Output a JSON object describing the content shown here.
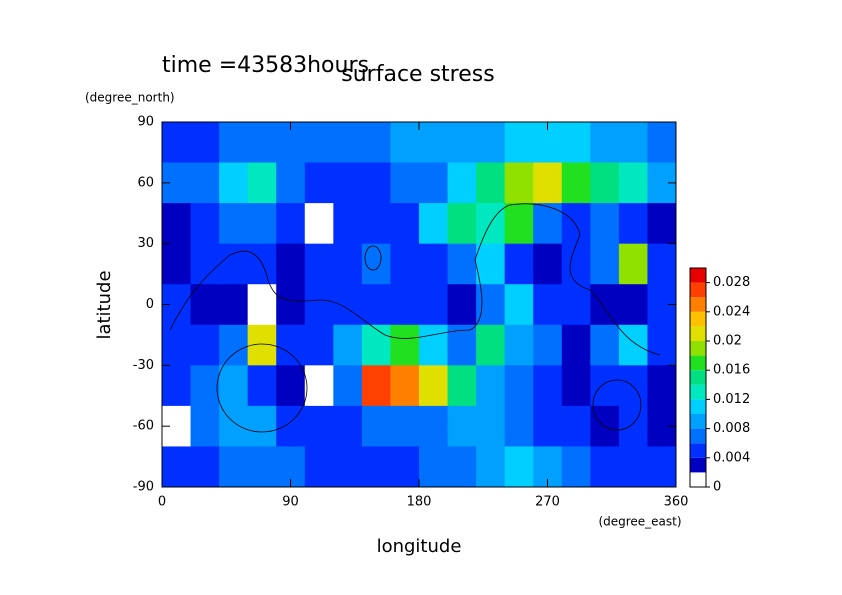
{
  "chart_data": {
    "type": "contour",
    "title": "surface stress",
    "annotation": "time =43583hours",
    "x_label": "longitude",
    "x_unit": "(degree_east)",
    "y_label": "latitude",
    "y_unit": "(degree_north)",
    "xlim": [
      0,
      360
    ],
    "xticks": [
      0,
      90,
      180,
      270,
      360
    ],
    "ylim": [
      -90,
      90
    ],
    "yticks": [
      -90,
      -60,
      -30,
      0,
      30,
      60,
      90
    ],
    "x": [
      10,
      30,
      50,
      70,
      90,
      110,
      130,
      150,
      170,
      190,
      210,
      230,
      250,
      270,
      290,
      310,
      330,
      350
    ],
    "y": [
      80,
      60,
      40,
      20,
      0,
      -20,
      -40,
      -60,
      -80
    ],
    "z": [
      [
        0.005,
        0.005,
        0.006,
        0.006,
        0.006,
        0.007,
        0.006,
        0.007,
        0.008,
        0.008,
        0.008,
        0.009,
        0.01,
        0.01,
        0.01,
        0.009,
        0.008,
        0.007
      ],
      [
        0.006,
        0.007,
        0.01,
        0.012,
        0.006,
        0.005,
        0.004,
        0.005,
        0.006,
        0.006,
        0.01,
        0.014,
        0.018,
        0.02,
        0.016,
        0.014,
        0.012,
        0.008
      ],
      [
        0.003,
        0.004,
        0.006,
        0.006,
        0.004,
        0.001,
        0.004,
        0.005,
        0.004,
        0.01,
        0.014,
        0.012,
        0.016,
        0.006,
        0.004,
        0.006,
        0.005,
        0.003
      ],
      [
        0.002,
        0.004,
        0.004,
        0.004,
        0.002,
        0.004,
        0.004,
        0.006,
        0.005,
        0.005,
        0.006,
        0.01,
        0.004,
        0.003,
        0.004,
        0.006,
        0.018,
        0.004
      ],
      [
        0.004,
        0.002,
        0.003,
        0.001,
        0.002,
        0.004,
        0.004,
        0.004,
        0.005,
        0.004,
        0.002,
        0.006,
        0.01,
        0.004,
        0.004,
        0.002,
        0.003,
        0.004
      ],
      [
        0.004,
        0.004,
        0.006,
        0.02,
        0.004,
        0.005,
        0.008,
        0.012,
        0.016,
        0.01,
        0.006,
        0.014,
        0.008,
        0.006,
        0.002,
        0.006,
        0.01,
        0.004
      ],
      [
        0.004,
        0.006,
        0.008,
        0.004,
        0.003,
        0.001,
        0.006,
        0.026,
        0.024,
        0.02,
        0.014,
        0.008,
        0.006,
        0.004,
        0.002,
        0.004,
        0.004,
        0.003
      ],
      [
        0.001,
        0.006,
        0.008,
        0.008,
        0.005,
        0.004,
        0.004,
        0.006,
        0.006,
        0.006,
        0.008,
        0.008,
        0.006,
        0.004,
        0.004,
        0.003,
        0.004,
        0.002
      ],
      [
        0.004,
        0.005,
        0.006,
        0.006,
        0.006,
        0.005,
        0.005,
        0.005,
        0.005,
        0.006,
        0.006,
        0.008,
        0.01,
        0.008,
        0.006,
        0.005,
        0.005,
        0.005
      ]
    ],
    "levels": [
      0,
      0.002,
      0.004,
      0.006,
      0.008,
      0.01,
      0.012,
      0.014,
      0.016,
      0.018,
      0.02,
      0.022,
      0.024,
      0.026,
      0.028,
      0.03
    ],
    "colors": [
      "#ffffff",
      "#0000c0",
      "#0030ff",
      "#0070ff",
      "#00a0ff",
      "#00d0ff",
      "#00e8c0",
      "#00e080",
      "#20e020",
      "#90e000",
      "#e0e000",
      "#ffc000",
      "#ff8000",
      "#ff4000",
      "#e80000"
    ],
    "cticks": [
      0,
      0.004,
      0.008,
      0.012,
      0.016,
      0.02,
      0.024,
      0.028
    ]
  }
}
